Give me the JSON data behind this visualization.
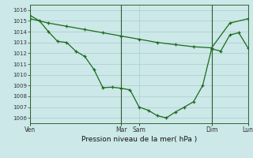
{
  "background_color": "#cce8e8",
  "grid_color": "#aacccc",
  "line_color": "#1a6b1a",
  "xlabel": "Pression niveau de la mer( hPa )",
  "ylim": [
    1005.5,
    1016.5
  ],
  "yticks": [
    1006,
    1007,
    1008,
    1009,
    1010,
    1011,
    1012,
    1013,
    1014,
    1015,
    1016
  ],
  "vline_positions": [
    0.0,
    0.417,
    0.833,
    1.0
  ],
  "xtick_labels_text": [
    "Ven",
    "Mar",
    "Sam",
    "Dim",
    "Lun"
  ],
  "xtick_labels_pos": [
    0.0,
    0.417,
    0.5,
    0.833,
    1.0
  ],
  "line1_x": [
    0.0,
    0.042,
    0.083,
    0.125,
    0.167,
    0.208,
    0.25,
    0.292,
    0.333,
    0.375,
    0.417,
    0.458,
    0.5,
    0.542,
    0.583,
    0.625,
    0.667,
    0.708,
    0.75,
    0.792,
    0.833,
    0.875,
    0.917,
    0.958,
    1.0
  ],
  "line1_y": [
    1015.5,
    1015.0,
    1014.0,
    1013.1,
    1013.0,
    1012.2,
    1011.7,
    1010.5,
    1008.8,
    1008.85,
    1008.75,
    1008.6,
    1007.0,
    1006.7,
    1006.2,
    1006.0,
    1006.55,
    1007.0,
    1007.5,
    1009.0,
    1012.4,
    1012.2,
    1013.7,
    1013.9,
    1012.5
  ],
  "line2_x": [
    0.0,
    0.083,
    0.167,
    0.25,
    0.333,
    0.417,
    0.5,
    0.583,
    0.667,
    0.75,
    0.833,
    0.917,
    1.0
  ],
  "line2_y": [
    1015.2,
    1014.8,
    1014.5,
    1014.2,
    1013.9,
    1013.6,
    1013.3,
    1013.0,
    1012.8,
    1012.6,
    1012.5,
    1014.8,
    1015.2
  ],
  "figsize": [
    3.2,
    2.0
  ],
  "dpi": 100
}
